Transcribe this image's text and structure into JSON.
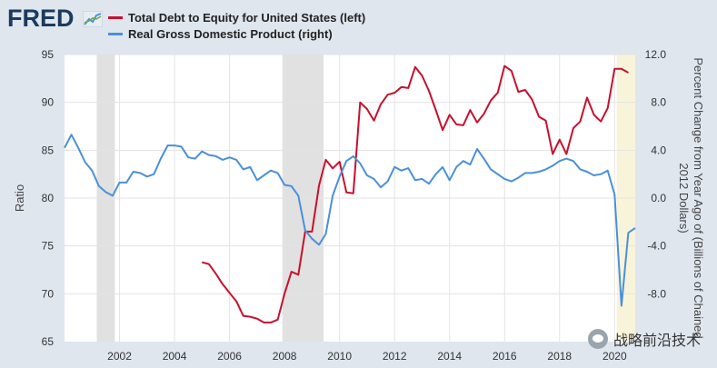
{
  "brand": {
    "name": "FRED"
  },
  "legend": [
    {
      "label": "Total Debt to Equity for United States (left)",
      "color": "#c8102e"
    },
    {
      "label": "Real Gross Domestic Product (right)",
      "color": "#4a90d9"
    }
  ],
  "watermark": {
    "text": "战略前沿技术"
  },
  "chart_data": {
    "type": "line",
    "title": "",
    "xlabel": "",
    "ylabel_left": "Ratio",
    "ylabel_right": "Percent Change from Year Ago of (Billions of Chained 2012 Dollars)",
    "right_axis_label_lines": [
      "Percent Change from Year Ago of (Billions of Chained",
      "2012 Dollars)"
    ],
    "xlim": [
      2000.0,
      2020.75
    ],
    "ylim_left": [
      65,
      95
    ],
    "ylim_right": [
      -12,
      12
    ],
    "x_ticks": [
      2002,
      2004,
      2006,
      2008,
      2010,
      2012,
      2014,
      2016,
      2018,
      2020
    ],
    "x_tick_labels": [
      "2002",
      "2004",
      "2006",
      "2008",
      "2010",
      "2012",
      "2014",
      "2016",
      "2018",
      "2020"
    ],
    "y_ticks_left": [
      65,
      70,
      75,
      80,
      85,
      90,
      95
    ],
    "y_tick_labels_left": [
      "65",
      "70",
      "75",
      "80",
      "85",
      "90",
      "95"
    ],
    "y_ticks_right": [
      -8,
      -4,
      0,
      4,
      8,
      12
    ],
    "y_tick_labels_right": [
      "-8.0",
      "-4.0",
      "0.0",
      "4.0",
      "8.0",
      "12.0"
    ],
    "grid": true,
    "recessions": [
      {
        "start": 2001.17,
        "end": 2001.83,
        "color": "#e1e1e1"
      },
      {
        "start": 2007.92,
        "end": 2009.42,
        "color": "#e1e1e1"
      },
      {
        "start": 2020.08,
        "end": 2020.75,
        "color": "#f8f4da"
      }
    ],
    "series": [
      {
        "name": "Total Debt to Equity for United States (left)",
        "color": "#c8102e",
        "axis": "left",
        "x": [
          2005.0,
          2005.25,
          2005.5,
          2005.75,
          2006.0,
          2006.25,
          2006.5,
          2006.75,
          2007.0,
          2007.25,
          2007.5,
          2007.75,
          2008.0,
          2008.25,
          2008.5,
          2008.75,
          2009.0,
          2009.25,
          2009.5,
          2009.75,
          2010.0,
          2010.25,
          2010.5,
          2010.75,
          2011.0,
          2011.25,
          2011.5,
          2011.75,
          2012.0,
          2012.25,
          2012.5,
          2012.75,
          2013.0,
          2013.25,
          2013.5,
          2013.75,
          2014.0,
          2014.25,
          2014.5,
          2014.75,
          2015.0,
          2015.25,
          2015.5,
          2015.75,
          2016.0,
          2016.25,
          2016.5,
          2016.75,
          2017.0,
          2017.25,
          2017.5,
          2017.75,
          2018.0,
          2018.25,
          2018.5,
          2018.75,
          2019.0,
          2019.25,
          2019.5,
          2019.75,
          2020.0,
          2020.25,
          2020.5
        ],
        "values": [
          73.3,
          73.1,
          72.1,
          71.0,
          70.1,
          69.2,
          67.7,
          67.6,
          67.4,
          67.0,
          67.0,
          67.3,
          70.0,
          72.3,
          72.0,
          76.5,
          76.5,
          81.3,
          84.0,
          83.1,
          83.8,
          80.6,
          80.5,
          90.0,
          89.3,
          88.1,
          89.8,
          90.8,
          91.0,
          91.6,
          91.5,
          93.7,
          92.8,
          91.2,
          89.2,
          87.1,
          88.7,
          87.7,
          87.6,
          89.2,
          87.9,
          88.8,
          90.2,
          91.0,
          93.8,
          93.3,
          91.1,
          91.3,
          90.3,
          88.5,
          88.1,
          84.6,
          86.1,
          84.6,
          87.3,
          88.0,
          90.5,
          88.7,
          88.0,
          89.4,
          93.5,
          93.5,
          93.1
        ]
      },
      {
        "name": "Real Gross Domestic Product (right)",
        "color": "#4a90d9",
        "axis": "right",
        "x": [
          2000.0,
          2000.25,
          2000.5,
          2000.75,
          2001.0,
          2001.25,
          2001.5,
          2001.75,
          2002.0,
          2002.25,
          2002.5,
          2002.75,
          2003.0,
          2003.25,
          2003.5,
          2003.75,
          2004.0,
          2004.25,
          2004.5,
          2004.75,
          2005.0,
          2005.25,
          2005.5,
          2005.75,
          2006.0,
          2006.25,
          2006.5,
          2006.75,
          2007.0,
          2007.25,
          2007.5,
          2007.75,
          2008.0,
          2008.25,
          2008.5,
          2008.75,
          2009.0,
          2009.25,
          2009.5,
          2009.75,
          2010.0,
          2010.25,
          2010.5,
          2010.75,
          2011.0,
          2011.25,
          2011.5,
          2011.75,
          2012.0,
          2012.25,
          2012.5,
          2012.75,
          2013.0,
          2013.25,
          2013.5,
          2013.75,
          2014.0,
          2014.25,
          2014.5,
          2014.75,
          2015.0,
          2015.25,
          2015.5,
          2015.75,
          2016.0,
          2016.25,
          2016.5,
          2016.75,
          2017.0,
          2017.25,
          2017.5,
          2017.75,
          2018.0,
          2018.25,
          2018.5,
          2018.75,
          2019.0,
          2019.25,
          2019.5,
          2019.75,
          2020.0,
          2020.25,
          2020.5,
          2020.75
        ],
        "values": [
          4.2,
          5.3,
          4.2,
          3.0,
          2.3,
          1.0,
          0.5,
          0.2,
          1.3,
          1.3,
          2.2,
          2.1,
          1.8,
          2.0,
          3.3,
          4.4,
          4.4,
          4.3,
          3.4,
          3.3,
          3.9,
          3.6,
          3.5,
          3.2,
          3.4,
          3.2,
          2.4,
          2.6,
          1.5,
          1.9,
          2.3,
          2.1,
          1.1,
          1.0,
          0.2,
          -2.7,
          -3.4,
          -3.9,
          -3.0,
          0.2,
          1.8,
          3.1,
          3.5,
          2.9,
          1.9,
          1.6,
          0.9,
          1.4,
          2.6,
          2.3,
          2.5,
          1.5,
          1.6,
          1.2,
          2.0,
          2.6,
          1.5,
          2.6,
          3.1,
          2.8,
          4.1,
          3.3,
          2.4,
          2.0,
          1.6,
          1.4,
          1.7,
          2.1,
          2.1,
          2.2,
          2.4,
          2.7,
          3.1,
          3.3,
          3.1,
          2.4,
          2.2,
          1.9,
          2.0,
          2.3,
          0.3,
          -9.0,
          -2.9,
          -2.5
        ]
      }
    ]
  }
}
